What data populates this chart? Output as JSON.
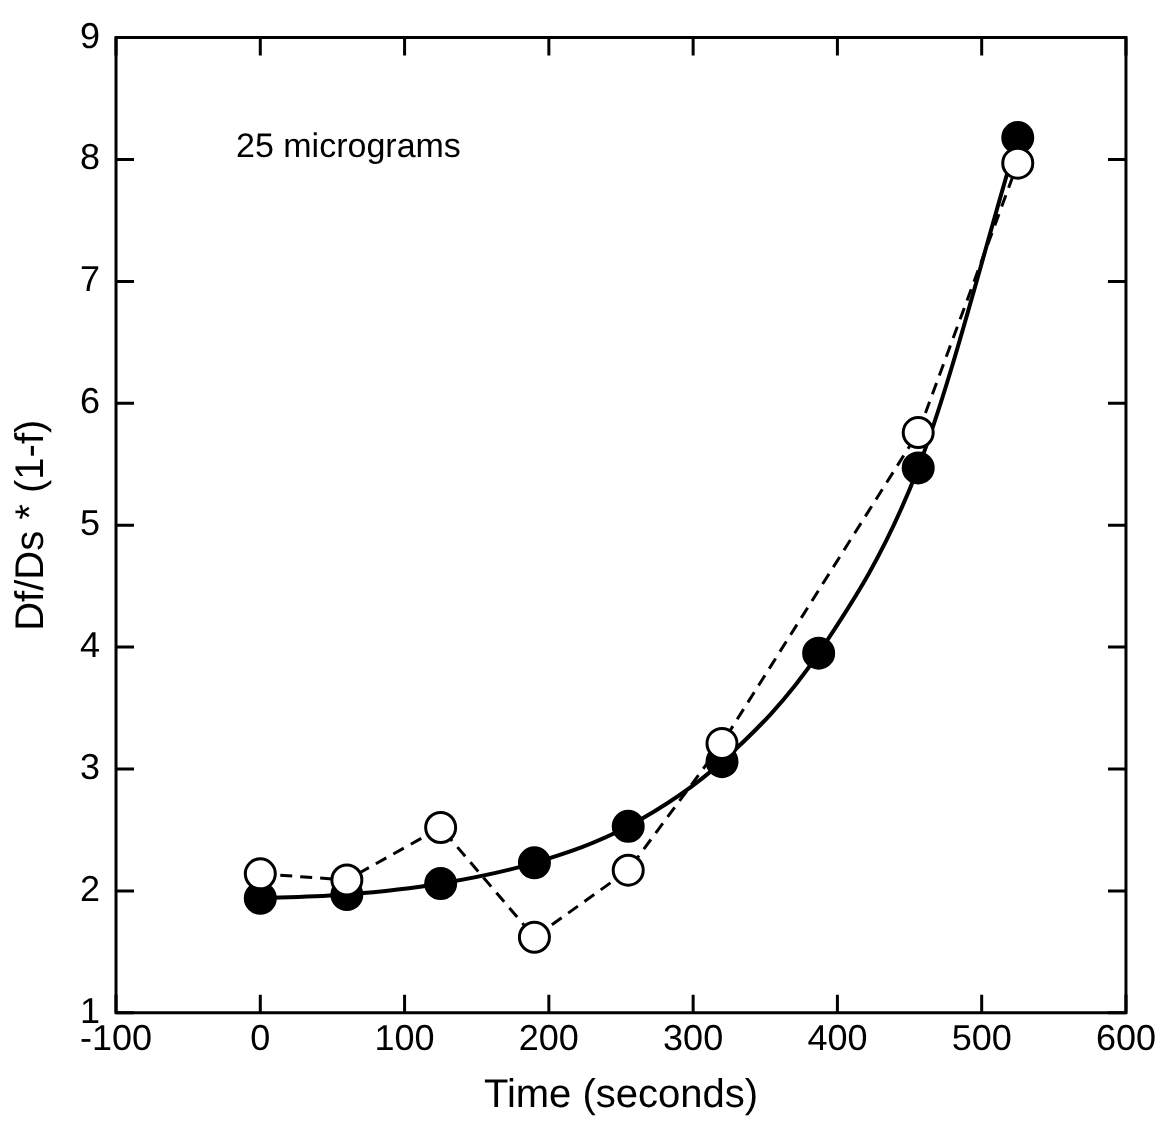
{
  "chart_data": {
    "type": "line",
    "xlabel": "Time (seconds)",
    "ylabel": "Df/Ds * (1-f)",
    "annotations": [
      "25 micrograms"
    ],
    "xlim": [
      -100,
      600
    ],
    "xticks": [
      -100,
      0,
      100,
      200,
      300,
      400,
      500,
      600
    ],
    "ylim": [
      1,
      9
    ],
    "yticks": [
      1,
      2,
      3,
      4,
      5,
      6,
      7,
      8,
      9
    ],
    "grid": false,
    "legend": false,
    "marker": "circle",
    "series": [
      {
        "color": "#000000",
        "line_style": "solid",
        "x": [
          0,
          60,
          125,
          190,
          255,
          320,
          387,
          456,
          525
        ],
        "values": [
          1.94,
          1.97,
          2.06,
          2.23,
          2.53,
          3.06,
          3.95,
          5.47,
          8.18
        ]
      },
      {
        "color": "#000000",
        "line_style": "dashed",
        "x": [
          0,
          60,
          125,
          190,
          255,
          320,
          387,
          456,
          525
        ],
        "values": [
          2.14,
          2.09,
          2.52,
          1.62,
          2.17,
          3.21,
          null,
          5.76,
          7.97
        ]
      }
    ]
  }
}
